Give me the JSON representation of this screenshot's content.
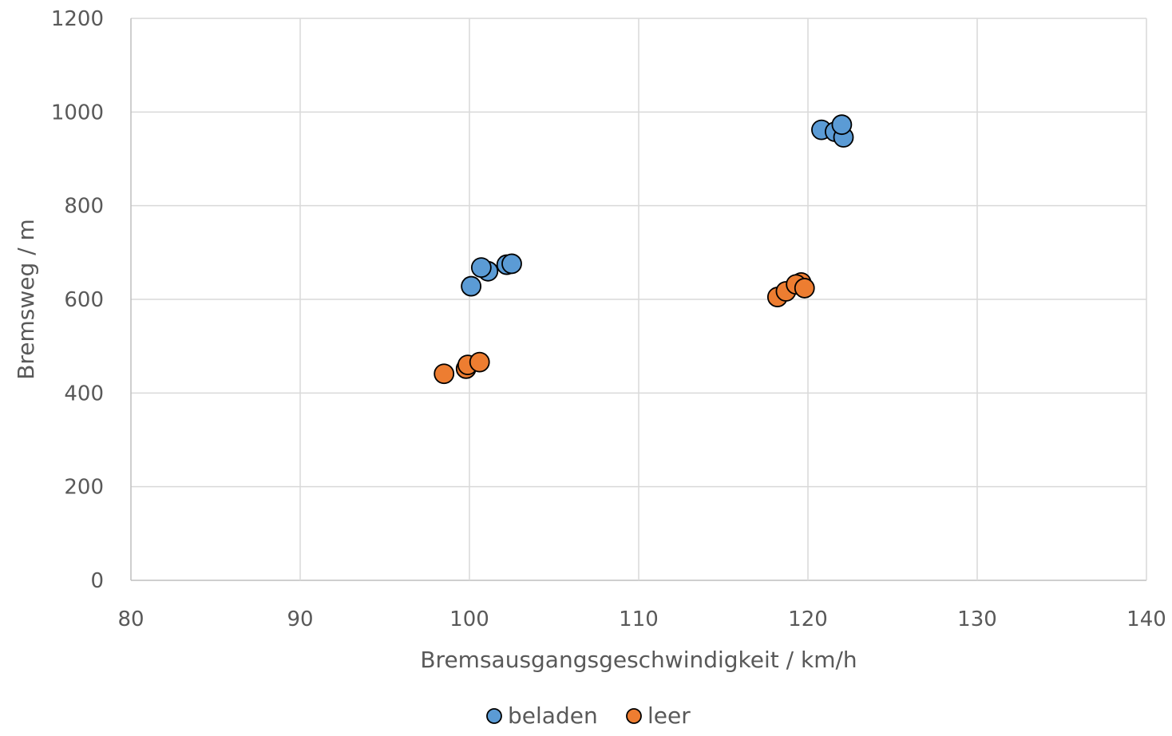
{
  "chart_data": {
    "type": "scatter",
    "title": "",
    "xlabel": "Bremsausgangsgeschwindigkeit / km/h",
    "ylabel": "Bremsweg / m",
    "xlim": [
      80,
      140
    ],
    "ylim": [
      0,
      1200
    ],
    "xticks": [
      "80",
      "90",
      "100",
      "110",
      "120",
      "130",
      "140"
    ],
    "yticks": [
      "0",
      "200",
      "400",
      "600",
      "800",
      "1000",
      "1200"
    ],
    "grid": true,
    "legend": "bottom-center",
    "series": [
      {
        "name": "beladen",
        "color": "#5b9bd5",
        "points": [
          [
            100.1,
            628
          ],
          [
            101.1,
            660
          ],
          [
            100.7,
            668
          ],
          [
            102.2,
            674
          ],
          [
            102.5,
            676
          ],
          [
            120.8,
            962
          ],
          [
            121.6,
            958
          ],
          [
            122.1,
            946
          ],
          [
            122.0,
            973
          ]
        ]
      },
      {
        "name": "leer",
        "color": "#ed7d31",
        "points": [
          [
            98.5,
            441
          ],
          [
            99.8,
            452
          ],
          [
            99.9,
            460
          ],
          [
            100.6,
            466
          ],
          [
            118.2,
            605
          ],
          [
            118.7,
            617
          ],
          [
            119.6,
            636
          ],
          [
            119.3,
            632
          ],
          [
            119.8,
            624
          ]
        ]
      }
    ]
  }
}
